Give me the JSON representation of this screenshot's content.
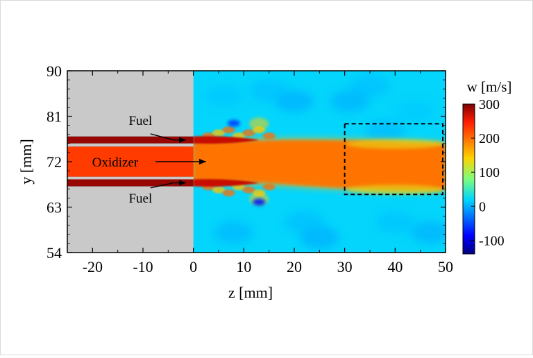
{
  "chart_data": {
    "type": "heatmap",
    "title": "",
    "xlabel": "z [mm]",
    "ylabel": "y [mm]",
    "x_ticks": [
      -20,
      -10,
      0,
      10,
      20,
      30,
      40,
      50
    ],
    "y_ticks": [
      54,
      63,
      72,
      81,
      90
    ],
    "xlim": [
      -25,
      50
    ],
    "ylim": [
      54,
      90
    ],
    "colorbar": {
      "label": "w [m/s]",
      "ticks": [
        300,
        200,
        100,
        0,
        -100
      ],
      "range": [
        -140,
        300
      ],
      "colormap": "jet"
    },
    "field": {
      "quantity": "w",
      "unit": "m/s",
      "coflow_velocity": 20,
      "wall_region": {
        "z_range": [
          -25,
          0
        ],
        "color": "#c9c9c9"
      },
      "fuel_streams": [
        {
          "label": "Fuel",
          "y": 76.3,
          "z_start": -25,
          "z_end": 13,
          "w": 290
        },
        {
          "label": "Fuel",
          "y": 67.8,
          "z_start": -25,
          "z_end": 13,
          "w": 290
        }
      ],
      "oxidizer_stream": {
        "label": "Oxidizer",
        "y_range": [
          69,
          75
        ],
        "w": 230
      },
      "jet_far_field": {
        "z": 45,
        "y_range": [
          66,
          76
        ],
        "w": 180
      },
      "low_velocity_pockets": [
        {
          "z": 8.0,
          "y": 79.6,
          "w": -60
        },
        {
          "z": 13.0,
          "y": 64.0,
          "w": -80
        }
      ]
    },
    "annotations": [
      {
        "text": "Fuel",
        "z": 1,
        "y": 76.3
      },
      {
        "text": "Oxidizer",
        "z": 2.5,
        "y": 72.0
      },
      {
        "text": "Fuel",
        "z": 1,
        "y": 67.8
      }
    ],
    "highlight_box": {
      "z_range": [
        30,
        50
      ],
      "y_range": [
        65.5,
        79.5
      ],
      "style": "dashed"
    }
  }
}
